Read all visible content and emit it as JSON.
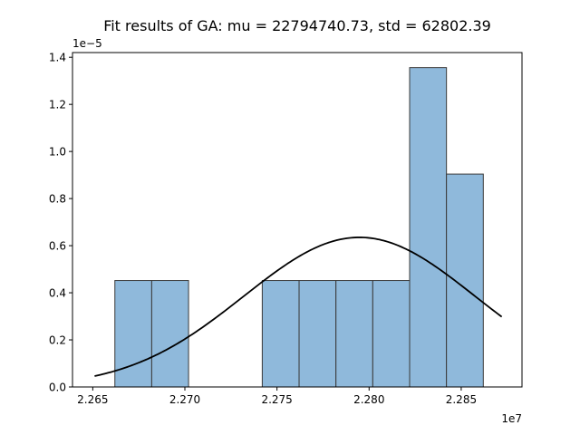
{
  "chart_data": {
    "type": "bar",
    "title": "Fit results of GA: mu = 22794740.73,  std = 62802.39",
    "xlabel": "",
    "ylabel": "",
    "x_offset_label": "1e7",
    "y_offset_label": "1e−5",
    "xlim": [
      22639000,
      22883000
    ],
    "ylim": [
      0,
      1.42
    ],
    "y_scale_multiplier": 1e-05,
    "x_scale_multiplier": 10000000.0,
    "xticks": [
      22650000,
      22700000,
      22750000,
      22800000,
      22850000
    ],
    "xtick_labels": [
      "2.265",
      "2.270",
      "2.275",
      "2.280",
      "2.285"
    ],
    "yticks": [
      0.0,
      0.2,
      0.4,
      0.6,
      0.8,
      1.0,
      1.2,
      1.4
    ],
    "ytick_labels": [
      "0.0",
      "0.2",
      "0.4",
      "0.6",
      "0.8",
      "1.0",
      "1.2",
      "1.4"
    ],
    "bars": [
      {
        "x0": 22662000,
        "x1": 22682000,
        "value": 0.452
      },
      {
        "x0": 22682000,
        "x1": 22702000,
        "value": 0.452
      },
      {
        "x0": 22742000,
        "x1": 22762000,
        "value": 0.452
      },
      {
        "x0": 22762000,
        "x1": 22782000,
        "value": 0.452
      },
      {
        "x0": 22782000,
        "x1": 22802000,
        "value": 0.452
      },
      {
        "x0": 22802000,
        "x1": 22822000,
        "value": 0.452
      },
      {
        "x0": 22822000,
        "x1": 22842000,
        "value": 1.356
      },
      {
        "x0": 22842000,
        "x1": 22862000,
        "value": 0.904
      }
    ],
    "fit_curve": {
      "mu": 22794740.73,
      "std": 62802.39,
      "x_start": 22651000,
      "x_end": 22872000
    },
    "bar_color": "#8fb9db",
    "bar_edge_color": "#3a3a3a",
    "curve_color": "#000000",
    "grid": false
  }
}
